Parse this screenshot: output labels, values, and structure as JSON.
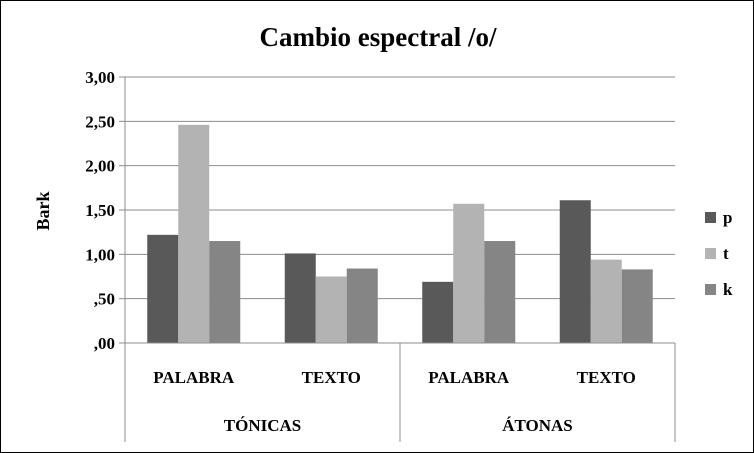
{
  "chart_data": {
    "type": "bar",
    "title": "Cambio espectral /o/",
    "ylabel": "Bark",
    "xlabel": "",
    "ylim": [
      0,
      3
    ],
    "yticks": [
      ",00",
      ",50",
      "1,00",
      "1,50",
      "2,00",
      "2,50",
      "3,00"
    ],
    "grid": true,
    "legend_position": "right",
    "groups": [
      {
        "label": "TÓNICAS",
        "categories": [
          "PALABRA",
          "TEXTO"
        ]
      },
      {
        "label": "ÁTONAS",
        "categories": [
          "PALABRA",
          "TEXTO"
        ]
      }
    ],
    "series": [
      {
        "name": "p",
        "color": "#595959",
        "values": [
          1.22,
          1.01,
          0.69,
          1.61
        ]
      },
      {
        "name": "t",
        "color": "#b3b3b3",
        "values": [
          2.46,
          0.75,
          1.57,
          0.94
        ]
      },
      {
        "name": "k",
        "color": "#858585",
        "values": [
          1.15,
          0.84,
          1.15,
          0.83
        ]
      }
    ]
  }
}
